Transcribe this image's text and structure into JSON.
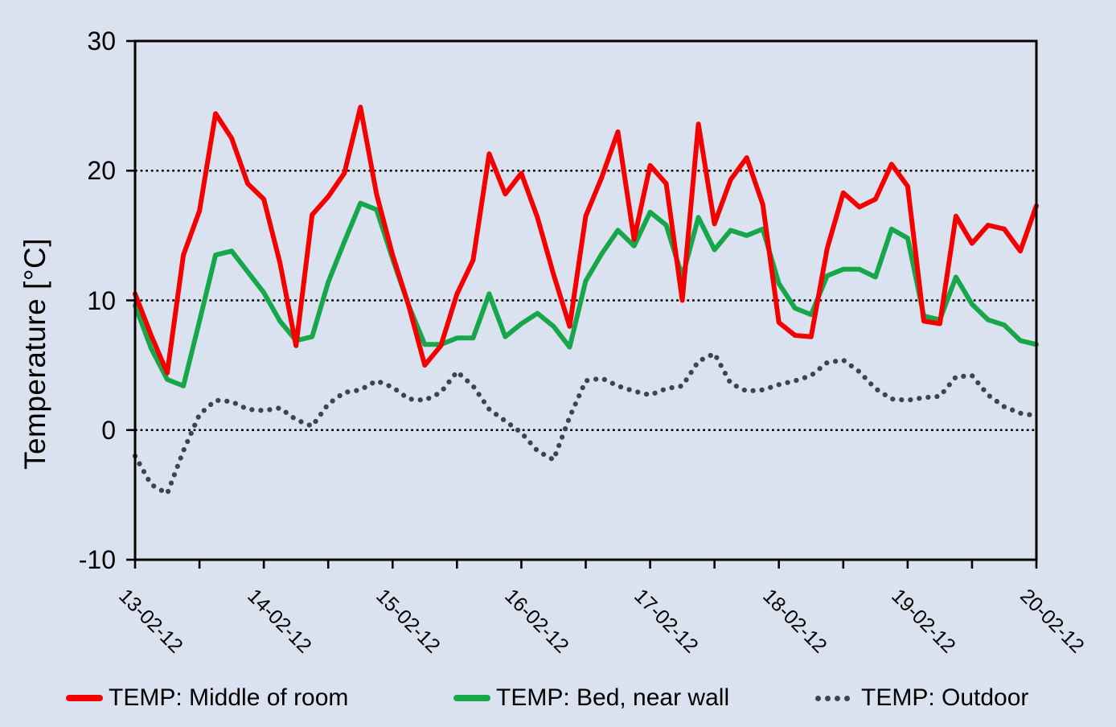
{
  "figure": {
    "background": "#dbe2ef",
    "text_color": "#000000",
    "frame_color": "#000000"
  },
  "y_axis": {
    "title": "Temperature [°C]",
    "ticks": [
      30,
      20,
      10,
      0,
      -10
    ],
    "min": -10,
    "max": 30,
    "gridlines": [
      20,
      10,
      0
    ]
  },
  "x_axis": {
    "labels": [
      "13-02-12",
      "14-02-12",
      "15-02-12",
      "16-02-12",
      "17-02-12",
      "18-02-12",
      "19-02-12",
      "20-02-12"
    ],
    "days": 7,
    "minor_ticks_per_day": 2
  },
  "legend": [
    {
      "label": "TEMP: Middle of room",
      "color": "#f50000",
      "style": "solid"
    },
    {
      "label": "TEMP: Bed, near wall",
      "color": "#17a64a",
      "style": "solid"
    },
    {
      "label": "TEMP: Outdoor",
      "color": "#3d444c",
      "style": "dotted"
    }
  ],
  "chart_data": {
    "type": "line",
    "title": "",
    "xlabel": "",
    "ylabel": "Temperature [°C]",
    "ylim": [
      -10,
      30
    ],
    "x_start_label": "13-02-12",
    "x_end_label": "20-02-12",
    "sampling_interval_hours": 3,
    "x_hours": [
      0,
      3,
      6,
      9,
      12,
      15,
      18,
      21,
      24,
      27,
      30,
      33,
      36,
      39,
      42,
      45,
      48,
      51,
      54,
      57,
      60,
      63,
      66,
      69,
      72,
      75,
      78,
      81,
      84,
      87,
      90,
      93,
      96,
      99,
      102,
      105,
      108,
      111,
      114,
      117,
      120,
      123,
      126,
      129,
      132,
      135,
      138,
      141,
      144,
      147,
      150,
      153,
      156,
      159,
      162,
      165,
      168
    ],
    "series": [
      {
        "name": "TEMP: Middle of room",
        "color": "#f50000",
        "dash": "solid",
        "values": [
          10.5,
          7.3,
          4.4,
          13.5,
          16.9,
          24.4,
          22.5,
          19.0,
          17.8,
          12.9,
          6.5,
          16.6,
          18.0,
          19.8,
          24.9,
          18.2,
          13.5,
          9.6,
          5.0,
          6.5,
          10.5,
          13.1,
          21.3,
          18.2,
          19.8,
          16.4,
          12.0,
          8.0,
          16.5,
          19.5,
          23.0,
          14.7,
          20.4,
          19.0,
          10.0,
          23.6,
          15.9,
          19.3,
          21.0,
          17.4,
          8.3,
          7.3,
          7.2,
          14.0,
          18.3,
          17.2,
          17.8,
          20.5,
          18.8,
          8.4,
          8.2,
          16.5,
          14.4,
          15.8,
          15.5,
          13.8,
          17.3
        ]
      },
      {
        "name": "TEMP: Bed, near wall",
        "color": "#17a64a",
        "dash": "solid",
        "values": [
          9.6,
          6.3,
          3.9,
          3.4,
          8.4,
          13.5,
          13.8,
          12.2,
          10.6,
          8.4,
          6.9,
          7.2,
          11.4,
          14.5,
          17.5,
          17.0,
          13.2,
          9.6,
          6.6,
          6.6,
          7.1,
          7.1,
          10.5,
          7.2,
          8.2,
          9.0,
          8.0,
          6.4,
          11.5,
          13.6,
          15.4,
          14.2,
          16.8,
          15.8,
          11.8,
          16.4,
          13.9,
          15.4,
          15.0,
          15.5,
          11.3,
          9.4,
          8.9,
          11.9,
          12.4,
          12.4,
          11.8,
          15.5,
          14.8,
          8.8,
          8.5,
          11.8,
          9.7,
          8.5,
          8.1,
          6.9,
          6.6
        ]
      },
      {
        "name": "TEMP: Outdoor",
        "color": "#3d444c",
        "dash": "dotted",
        "values": [
          -2.0,
          -4.2,
          -4.9,
          -1.6,
          1.2,
          2.3,
          2.2,
          1.6,
          1.5,
          1.7,
          0.8,
          0.3,
          2.0,
          2.9,
          3.1,
          3.8,
          3.3,
          2.4,
          2.3,
          2.9,
          4.5,
          3.4,
          1.6,
          0.7,
          -0.2,
          -1.6,
          -2.3,
          1.0,
          3.8,
          4.0,
          3.4,
          3.0,
          2.7,
          3.2,
          3.4,
          5.3,
          5.9,
          3.6,
          3.0,
          3.1,
          3.5,
          3.8,
          4.2,
          5.2,
          5.4,
          4.5,
          3.2,
          2.4,
          2.3,
          2.5,
          2.6,
          4.1,
          4.2,
          2.7,
          1.8,
          1.3,
          1.1
        ]
      }
    ]
  }
}
